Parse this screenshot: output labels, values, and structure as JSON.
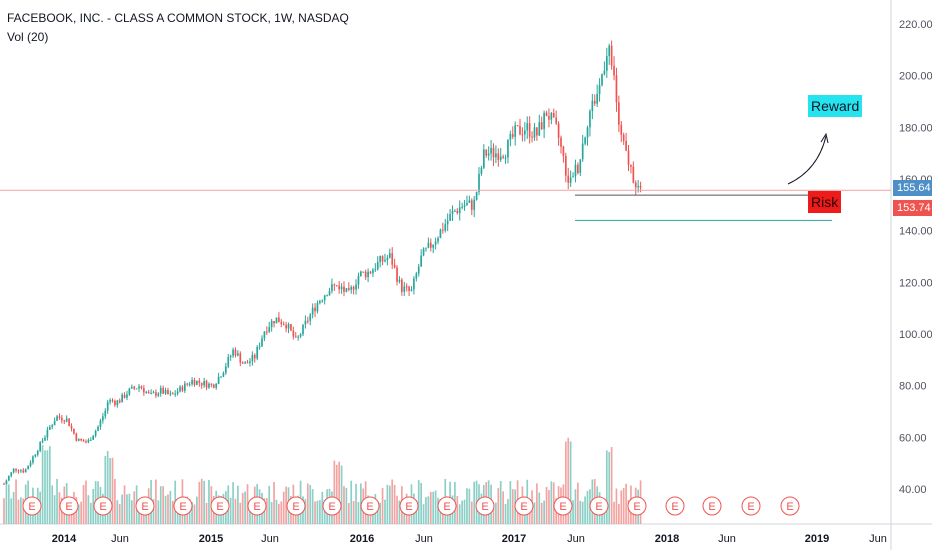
{
  "header": {
    "symbol_title": "FACEBOOK, INC. - CLASS A COMMON STOCK, 1W, NASDAQ",
    "volume_indicator": "Vol (20)"
  },
  "annotations": {
    "reward_label": "Reward",
    "risk_label": "Risk"
  },
  "price_tags": {
    "last": "155.64",
    "close": "153.74"
  },
  "earnings_marker_label": "E",
  "colors": {
    "up": "#26a69a",
    "down": "#ef5350",
    "vol_up": "#8ccfc6",
    "vol_down": "#f3a3a1",
    "reward_bg": "#26e4ef",
    "risk_bg": "#ee1b1b",
    "tag_blue": "#4d8fc6"
  },
  "chart_data": {
    "type": "candlestick",
    "title": "FACEBOOK, INC. - CLASS A COMMON STOCK, 1W, NASDAQ",
    "y_axis": {
      "ticks": [
        "220.00",
        "200.00",
        "180.00",
        "160.00",
        "140.00",
        "120.00",
        "100.00",
        "80.00",
        "60.00",
        "40.00"
      ],
      "range": [
        26,
        224
      ]
    },
    "x_axis": {
      "ticks": [
        "2014",
        "Jun",
        "2015",
        "Jun",
        "2016",
        "Jun",
        "2017",
        "Jun",
        "2018",
        "Jun",
        "2019",
        "Jun"
      ]
    },
    "weekly_close_path": [
      [
        "2013-09",
        42
      ],
      [
        "2013-10",
        48
      ],
      [
        "2013-11",
        47
      ],
      [
        "2013-12",
        54
      ],
      [
        "2014-01",
        61
      ],
      [
        "2014-02",
        68
      ],
      [
        "2014-03",
        67
      ],
      [
        "2014-04",
        59
      ],
      [
        "2014-05",
        58
      ],
      [
        "2014-06",
        64
      ],
      [
        "2014-07",
        73
      ],
      [
        "2014-08",
        74
      ],
      [
        "2014-09",
        78
      ],
      [
        "2014-10",
        80
      ],
      [
        "2014-11",
        76
      ],
      [
        "2014-12",
        78
      ],
      [
        "2015-01",
        76
      ],
      [
        "2015-02",
        79
      ],
      [
        "2015-03",
        82
      ],
      [
        "2015-04",
        81
      ],
      [
        "2015-05",
        80
      ],
      [
        "2015-06",
        86
      ],
      [
        "2015-07",
        94
      ],
      [
        "2015-08",
        88
      ],
      [
        "2015-09",
        91
      ],
      [
        "2015-10",
        102
      ],
      [
        "2015-11",
        106
      ],
      [
        "2015-12",
        104
      ],
      [
        "2016-01",
        97
      ],
      [
        "2016-02",
        105
      ],
      [
        "2016-03",
        112
      ],
      [
        "2016-04",
        117
      ],
      [
        "2016-05",
        119
      ],
      [
        "2016-06",
        115
      ],
      [
        "2016-07",
        123
      ],
      [
        "2016-08",
        124
      ],
      [
        "2016-09",
        128
      ],
      [
        "2016-10",
        130
      ],
      [
        "2016-11",
        118
      ],
      [
        "2016-12",
        116
      ],
      [
        "2017-01",
        130
      ],
      [
        "2017-02",
        135
      ],
      [
        "2017-03",
        141
      ],
      [
        "2017-04",
        147
      ],
      [
        "2017-05",
        150
      ],
      [
        "2017-06",
        150
      ],
      [
        "2017-07",
        170
      ],
      [
        "2017-08",
        170
      ],
      [
        "2017-09",
        171
      ],
      [
        "2017-10",
        178
      ],
      [
        "2017-11",
        180
      ],
      [
        "2017-12",
        177
      ],
      [
        "2018-01",
        186
      ],
      [
        "2018-02",
        178
      ],
      [
        "2018-03",
        160
      ],
      [
        "2018-04",
        165
      ],
      [
        "2018-05",
        185
      ],
      [
        "2018-06",
        195
      ],
      [
        "2018-07",
        215
      ],
      [
        "2018-08",
        177
      ],
      [
        "2018-09",
        164
      ],
      [
        "2018-10",
        154
      ]
    ],
    "volume_spikes": [
      [
        "2014-01",
        58
      ],
      [
        "2014-07",
        55
      ],
      [
        "2016-05",
        52
      ],
      [
        "2018-03",
        62
      ],
      [
        "2018-07",
        57
      ]
    ],
    "levels": {
      "risk_line": 153.74,
      "last_price": 155.64,
      "support": 144
    }
  }
}
